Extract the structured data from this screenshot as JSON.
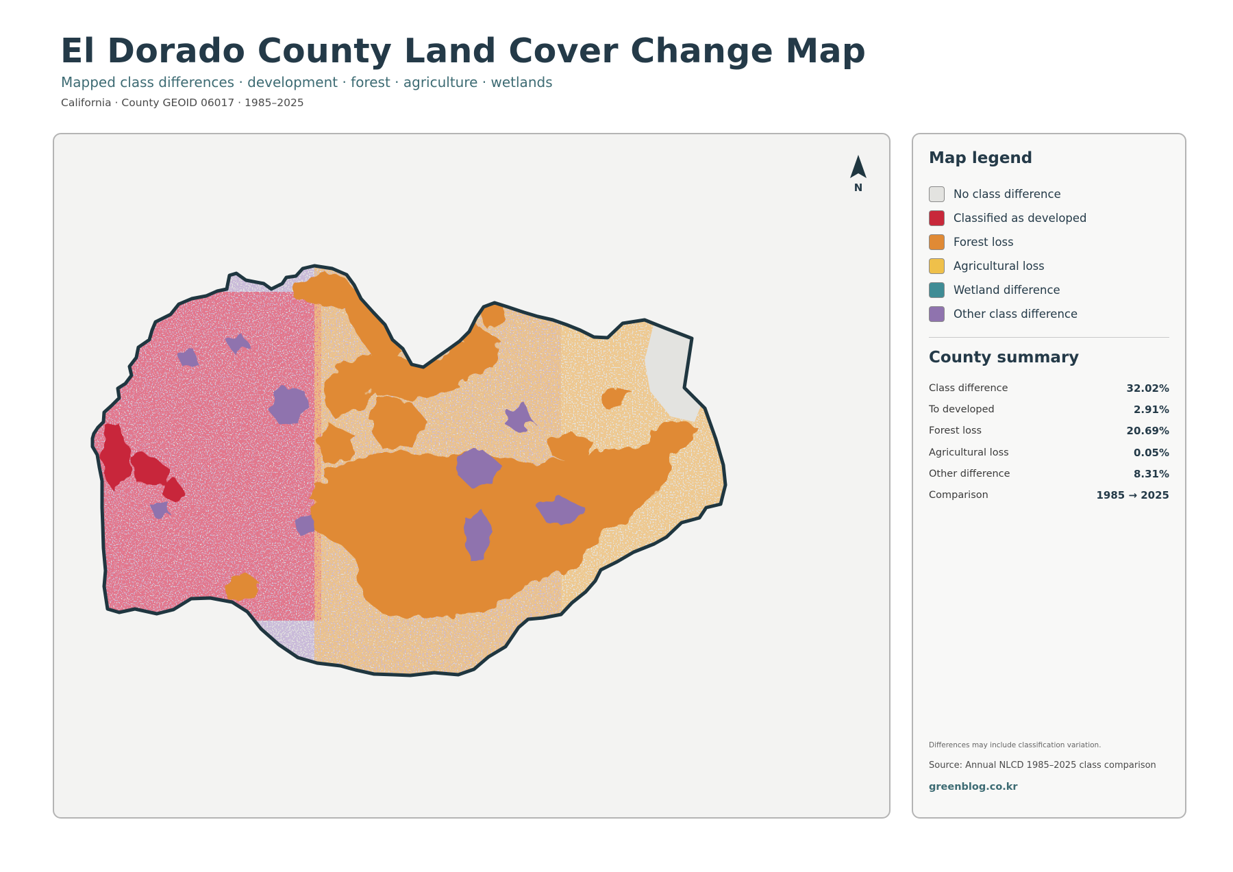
{
  "header": {
    "title": "El Dorado County Land Cover Change Map",
    "subtitle": "Mapped class differences · development · forest · agriculture · wetlands",
    "meta": "California · County GEOID 06017 · 1985–2025"
  },
  "map": {
    "north_arrow_label": "N",
    "palette": {
      "no_change": "#e3e3e0",
      "developed": "#c8283a",
      "forest_loss": "#e08a35",
      "agricultural_loss": "#efc04a",
      "wetland": "#3f8c95",
      "other": "#8f73ae",
      "boundary": "#1f3640"
    }
  },
  "legend": {
    "title": "Map legend",
    "items": [
      {
        "label": "No class difference",
        "color": "#e3e3e0"
      },
      {
        "label": "Classified as developed",
        "color": "#c8283a"
      },
      {
        "label": "Forest loss",
        "color": "#e08a35"
      },
      {
        "label": "Agricultural loss",
        "color": "#efc04a"
      },
      {
        "label": "Wetland difference",
        "color": "#3f8c95"
      },
      {
        "label": "Other class difference",
        "color": "#8f73ae"
      }
    ]
  },
  "summary": {
    "title": "County summary",
    "rows": [
      {
        "label": "Class difference",
        "value": "32.02%"
      },
      {
        "label": "To developed",
        "value": "2.91%"
      },
      {
        "label": "Forest loss",
        "value": "20.69%"
      },
      {
        "label": "Agricultural loss",
        "value": "0.05%"
      },
      {
        "label": "Other difference",
        "value": "8.31%"
      },
      {
        "label": "Comparison",
        "value": "1985 → 2025"
      }
    ]
  },
  "footer": {
    "note": "Differences may include classification variation.",
    "source": "Source: Annual NLCD 1985–2025 class comparison",
    "site": "greenblog.co.kr"
  }
}
